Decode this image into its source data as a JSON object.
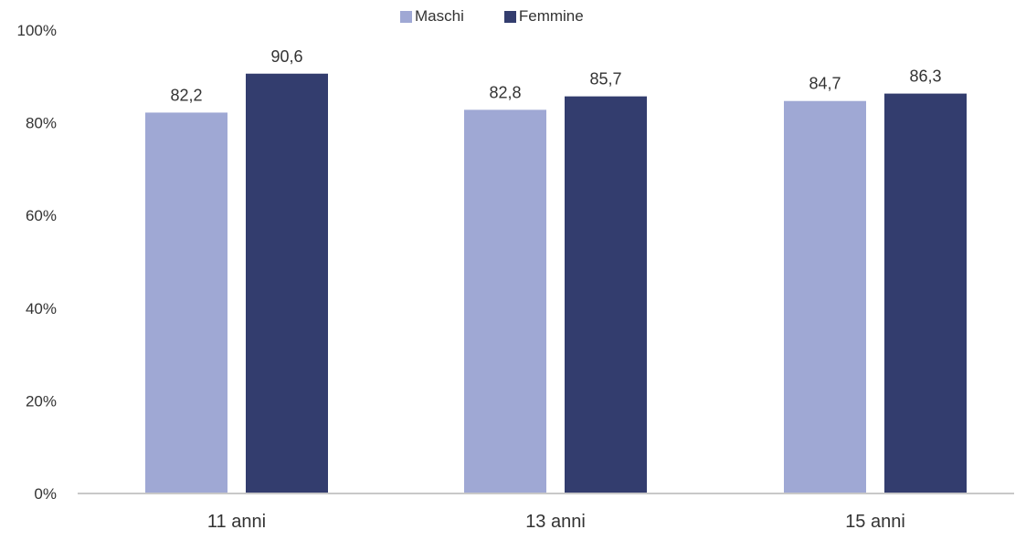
{
  "chart_data": {
    "type": "bar",
    "categories": [
      "11 anni",
      "13 anni",
      "15 anni"
    ],
    "series": [
      {
        "name": "Maschi",
        "values": [
          82.2,
          82.8,
          84.7
        ],
        "labels": [
          "82,2",
          "82,8",
          "84,7"
        ],
        "color": "#9fa8d4"
      },
      {
        "name": "Femmine",
        "values": [
          90.6,
          85.7,
          86.3
        ],
        "labels": [
          "90,6",
          "85,7",
          "86,3"
        ],
        "color": "#333d6e"
      }
    ],
    "ylim": [
      0,
      100
    ],
    "yticks": [
      0,
      20,
      40,
      60,
      80,
      100
    ],
    "ytick_labels": [
      "0%",
      "20%",
      "40%",
      "60%",
      "80%",
      "100%"
    ],
    "grid": false,
    "legend_position": "top-center"
  }
}
